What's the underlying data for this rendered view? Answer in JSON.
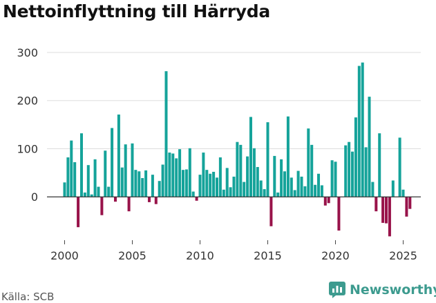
{
  "title": "Nettoinflyttning till Härryda",
  "source": "Källa: SCB",
  "brand": "Newsworthy",
  "colors": {
    "positive": "#15a39a",
    "negative": "#98134a",
    "grid": "#dddddd",
    "brand": "#3d9b8f"
  },
  "chart_data": {
    "type": "bar",
    "title": "Nettoinflyttning till Härryda",
    "frequency": "quarterly",
    "x_start": 2000.0,
    "xlim": [
      1998.7,
      2026.3
    ],
    "ylim": [
      -90,
      320
    ],
    "yticks": [
      0,
      100,
      200,
      300
    ],
    "xticks": [
      2000,
      2005,
      2010,
      2015,
      2020,
      2025
    ],
    "values": [
      30,
      82,
      117,
      72,
      -63,
      132,
      9,
      66,
      5,
      78,
      21,
      -38,
      96,
      21,
      143,
      -10,
      171,
      61,
      109,
      -30,
      111,
      56,
      53,
      39,
      55,
      -11,
      46,
      -15,
      33,
      67,
      261,
      92,
      90,
      80,
      99,
      56,
      57,
      101,
      11,
      -8,
      46,
      92,
      56,
      48,
      52,
      40,
      82,
      15,
      60,
      20,
      42,
      114,
      108,
      31,
      84,
      166,
      101,
      62,
      34,
      16,
      155,
      -61,
      85,
      9,
      78,
      53,
      167,
      40,
      14,
      54,
      42,
      22,
      142,
      108,
      25,
      48,
      24,
      -18,
      -13,
      76,
      73,
      -70,
      0,
      107,
      114,
      94,
      165,
      272,
      279,
      103,
      208,
      31,
      -30,
      132,
      -54,
      -55,
      -82,
      34,
      0,
      123,
      15,
      -41,
      -25
    ]
  }
}
